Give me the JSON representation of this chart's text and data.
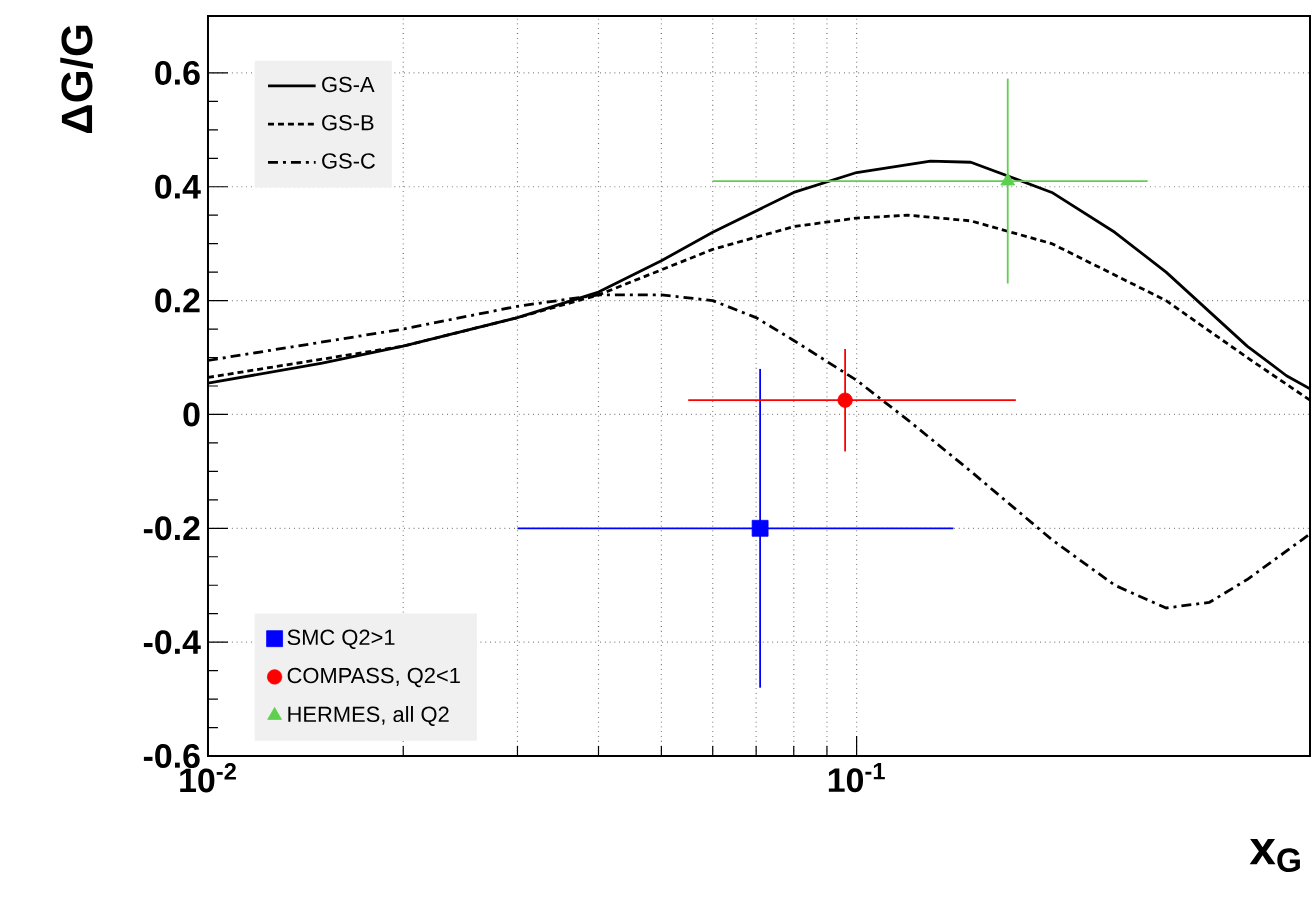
{
  "chart_data": {
    "type": "line",
    "xlabel": "x$_{G}$",
    "ylabel": "ΔG/G",
    "log": "x",
    "grid": true,
    "legend": "left",
    "xlim": [
      0.01,
      0.5
    ],
    "ylim": [
      -0.6,
      0.7
    ],
    "xticks": [
      {
        "value": 0.01,
        "label": "10$^{-2}$"
      },
      {
        "value": 0.1,
        "label": "10$^{-1}$"
      }
    ],
    "yticks": [
      -0.6,
      -0.4,
      -0.2,
      0,
      0.2,
      0.4,
      0.6
    ],
    "series": [
      {
        "name": "GS-A",
        "line_style": "solid",
        "color": "#000000",
        "x": [
          0.01,
          0.015,
          0.02,
          0.03,
          0.04,
          0.05,
          0.06,
          0.08,
          0.1,
          0.13,
          0.15,
          0.2,
          0.25,
          0.3,
          0.4,
          0.46,
          0.5
        ],
        "values": [
          0.055,
          0.09,
          0.12,
          0.17,
          0.215,
          0.27,
          0.32,
          0.39,
          0.425,
          0.445,
          0.443,
          0.39,
          0.32,
          0.25,
          0.12,
          0.068,
          0.045
        ]
      },
      {
        "name": "GS-B",
        "line_style": "dashed",
        "color": "#000000",
        "x": [
          0.01,
          0.02,
          0.03,
          0.04,
          0.06,
          0.08,
          0.1,
          0.12,
          0.15,
          0.2,
          0.3,
          0.4,
          0.5
        ],
        "values": [
          0.065,
          0.12,
          0.17,
          0.21,
          0.29,
          0.33,
          0.345,
          0.35,
          0.34,
          0.3,
          0.2,
          0.1,
          0.025
        ]
      },
      {
        "name": "GS-C",
        "line_style": "dashdot",
        "color": "#000000",
        "x": [
          0.01,
          0.02,
          0.03,
          0.04,
          0.05,
          0.06,
          0.07,
          0.08,
          0.1,
          0.12,
          0.15,
          0.2,
          0.25,
          0.3,
          0.35,
          0.4,
          0.5
        ],
        "values": [
          0.095,
          0.15,
          0.19,
          0.21,
          0.21,
          0.2,
          0.17,
          0.13,
          0.06,
          -0.01,
          -0.1,
          -0.22,
          -0.3,
          -0.34,
          -0.33,
          -0.29,
          -0.21
        ]
      },
      {
        "name": "SMC Q2>1",
        "type": "scatter",
        "marker": "square",
        "color": "#0000ff",
        "x": [
          0.071
        ],
        "values": [
          -0.2
        ],
        "errors": [
          [
            -0.48,
            0.08
          ]
        ],
        "xerrors": [
          [
            0.03,
            0.141
          ]
        ]
      },
      {
        "name": "COMPASS, Q2<1",
        "type": "scatter",
        "marker": "circle",
        "color": "#ff0000",
        "x": [
          0.096
        ],
        "values": [
          0.025
        ],
        "errors": [
          [
            -0.065,
            0.115
          ]
        ],
        "xerrors": [
          [
            0.055,
            0.176
          ]
        ]
      },
      {
        "name": "HERMES, all Q2",
        "type": "scatter",
        "marker": "triangle",
        "color": "#5fcf4f",
        "x": [
          0.171
        ],
        "values": [
          0.41
        ],
        "errors": [
          [
            0.23,
            0.59
          ]
        ],
        "xerrors": [
          [
            0.06,
            0.281
          ]
        ]
      }
    ]
  }
}
